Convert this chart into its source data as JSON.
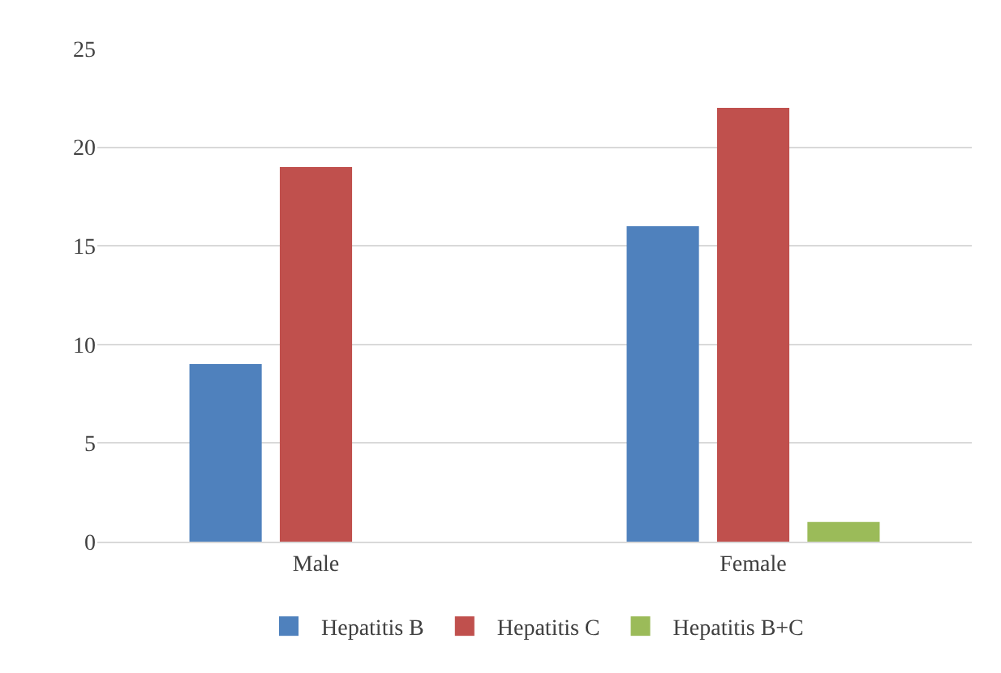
{
  "chart_data": {
    "type": "bar",
    "categories": [
      "Male",
      "Female"
    ],
    "series": [
      {
        "name": "Hepatitis B",
        "color": "#4f81bd",
        "values": [
          9,
          16
        ]
      },
      {
        "name": "Hepatitis C",
        "color": "#c0504d",
        "values": [
          19,
          22
        ]
      },
      {
        "name": "Hepatitis B+C",
        "color": "#9bbb59",
        "values": [
          0,
          1
        ]
      }
    ],
    "ylim": [
      0,
      25
    ],
    "yticks": [
      0,
      5,
      10,
      15,
      20,
      25
    ],
    "grid": "y",
    "legend": "bottom"
  }
}
